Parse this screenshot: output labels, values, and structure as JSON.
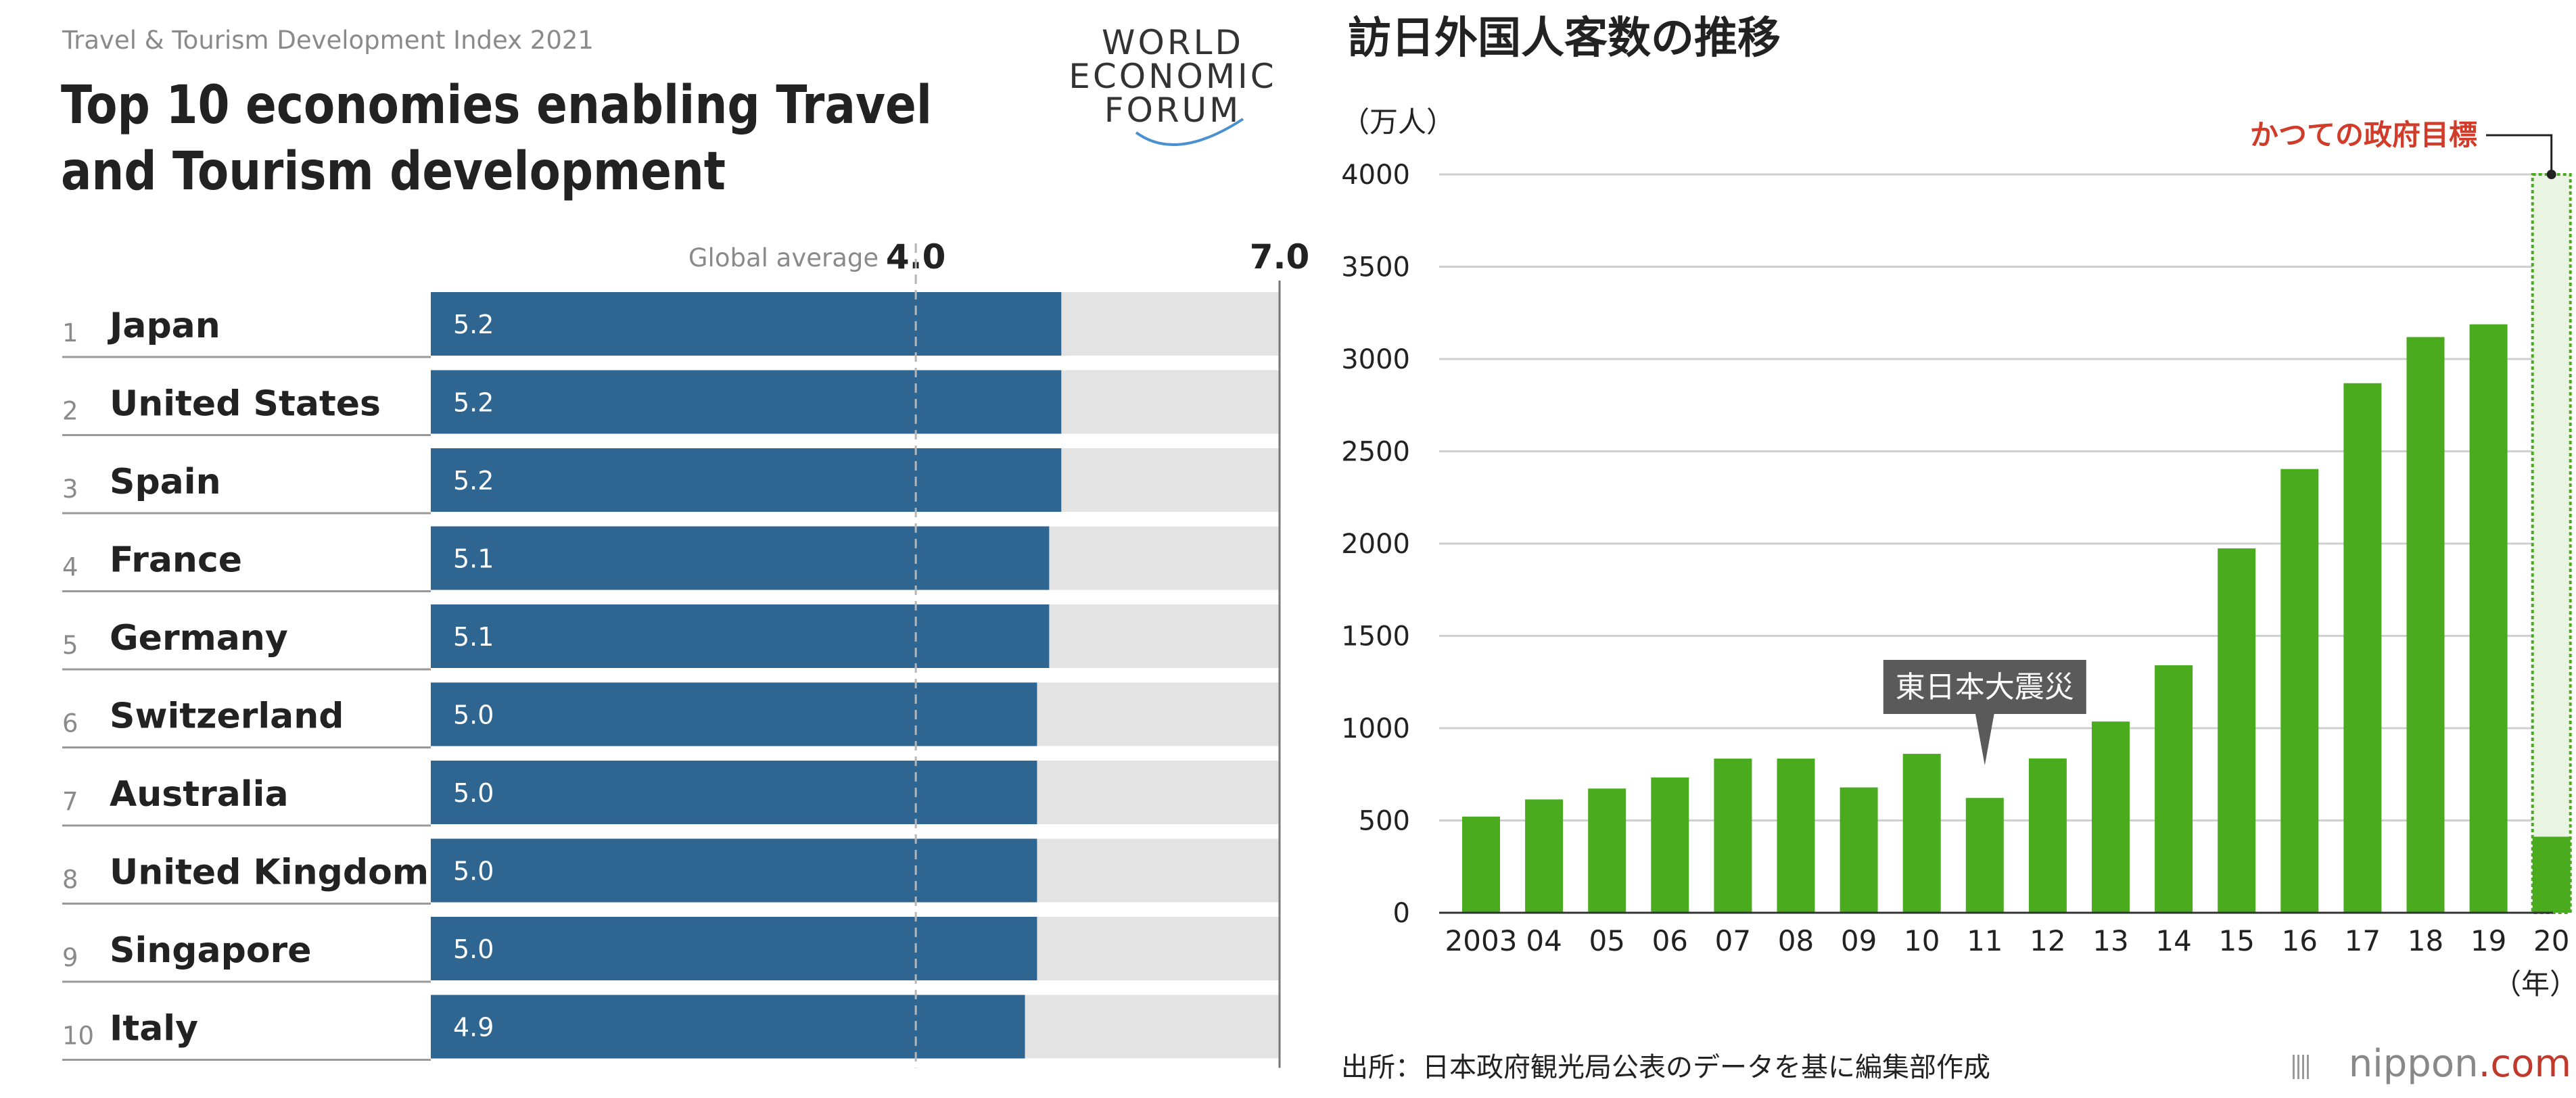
{
  "chart_data": [
    {
      "type": "bar",
      "orientation": "horizontal",
      "header": "Travel & Tourism Development Index 2021",
      "title_lines": [
        "Top 10 economies enabling Travel",
        "and Tourism development"
      ],
      "logo_text": [
        "WORLD",
        "ECONOMIC",
        "FORUM"
      ],
      "xlim": [
        0,
        7
      ],
      "axis_max_label": "7.0",
      "reference_line": {
        "label": "Global average",
        "value": 4.0,
        "value_label": "4.0"
      },
      "ranks": [
        "1",
        "2",
        "3",
        "4",
        "5",
        "6",
        "7",
        "8",
        "9",
        "10"
      ],
      "categories": [
        "Japan",
        "United States",
        "Spain",
        "France",
        "Germany",
        "Switzerland",
        "Australia",
        "United Kingdom",
        "Singapore",
        "Italy"
      ],
      "values": [
        5.2,
        5.2,
        5.2,
        5.1,
        5.1,
        5.0,
        5.0,
        5.0,
        5.0,
        4.9
      ],
      "value_labels": [
        "5.2",
        "5.2",
        "5.2",
        "5.1",
        "5.1",
        "5.0",
        "5.0",
        "5.0",
        "5.0",
        "4.9"
      ],
      "colors": {
        "bar": "#2e6591",
        "track": "#e3e3e3",
        "text": "#222222",
        "muted": "#8a8a8a",
        "rule": "#777777",
        "logo_arc": "#4a90d0"
      }
    },
    {
      "type": "bar",
      "title": "訪日外国人客数の推移",
      "unit_label": "（万人）",
      "x_unit_label": "（年）",
      "categories": [
        "2003",
        "04",
        "05",
        "06",
        "07",
        "08",
        "09",
        "10",
        "11",
        "12",
        "13",
        "14",
        "15",
        "16",
        "17",
        "18",
        "19",
        "20"
      ],
      "values": [
        521,
        614,
        673,
        733,
        835,
        835,
        679,
        861,
        622,
        836,
        1036,
        1341,
        1974,
        2404,
        2869,
        3119,
        3188,
        412
      ],
      "ylim": [
        0,
        4000
      ],
      "yticks": [
        0,
        500,
        1000,
        1500,
        2000,
        2500,
        3000,
        3500,
        4000
      ],
      "ytick_labels": [
        "0",
        "500",
        "1000",
        "1500",
        "2000",
        "2500",
        "3000",
        "3500",
        "4000"
      ],
      "grid": true,
      "annotations": {
        "event": {
          "text": "東日本大震災",
          "category": "11"
        },
        "target": {
          "text": "かつての政府目標",
          "category": "20",
          "value": 4000
        }
      },
      "source": "出所：日本政府観光局公表のデータを基に編集部作成",
      "brand": {
        "prefix": "nippon",
        "suffix": ".com"
      },
      "colors": {
        "bar": "#4aab1f",
        "target_fill": "#eaf4e2",
        "target_border": "#4aab1f",
        "grid": "#cfcfcf",
        "annotation_text": "#d13c2a",
        "callout_bg": "#5a5a5a",
        "text": "#222222"
      }
    }
  ]
}
